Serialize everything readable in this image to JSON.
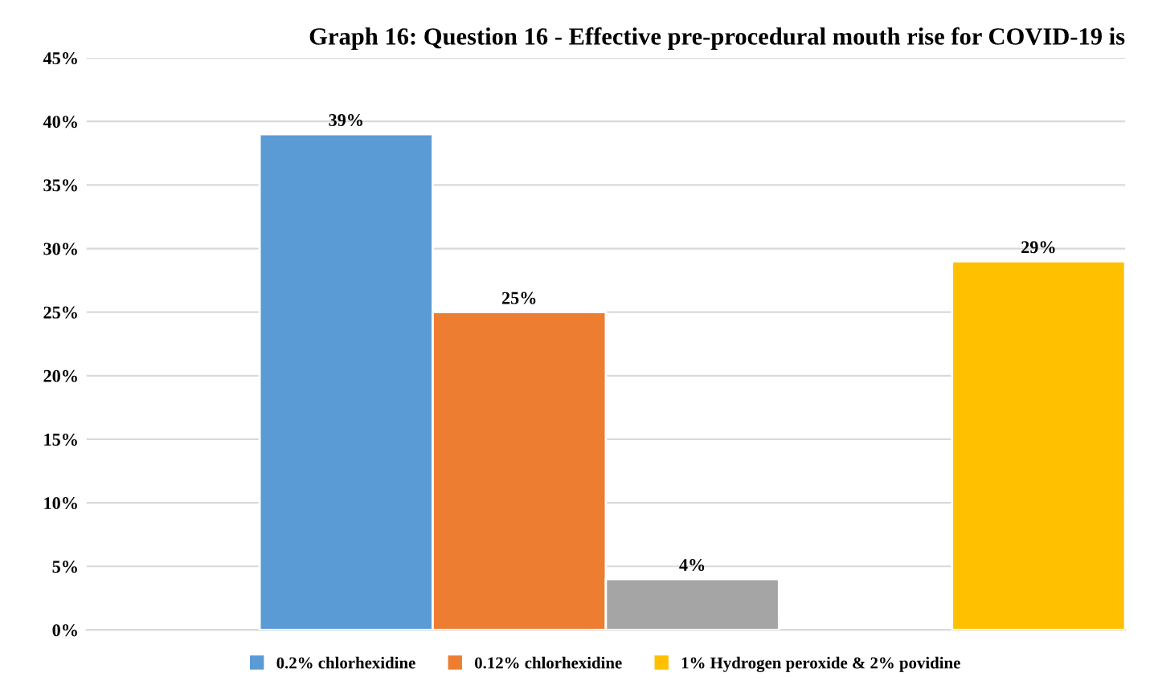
{
  "chart_data": {
    "type": "bar",
    "title": "Graph 16: Question 16 - Effective pre-procedural mouth rise for COVID-19 is",
    "categories": [
      null,
      null,
      null,
      null,
      null,
      null
    ],
    "series": [
      {
        "name": "0.2% chlorhexidine",
        "color": "#5b9bd5",
        "values": [
          null,
          39,
          null,
          null,
          null,
          null
        ],
        "value_labels": [
          null,
          "39%",
          null,
          null,
          null,
          null
        ]
      },
      {
        "name": "0.12% chlorhexidine",
        "color": "#ed7d31",
        "values": [
          null,
          null,
          25,
          null,
          null,
          null
        ],
        "value_labels": [
          null,
          null,
          "25%",
          null,
          null,
          null
        ]
      },
      {
        "color": "#a5a5a5",
        "values": [
          null,
          null,
          null,
          4,
          null,
          null
        ],
        "value_labels": [
          null,
          null,
          null,
          "4%",
          null,
          null
        ]
      },
      {
        "name": "1% Hydrogen peroxide & 2% povidine",
        "color": "#ffc000",
        "values": [
          null,
          null,
          null,
          null,
          null,
          29
        ],
        "value_labels": [
          null,
          null,
          null,
          null,
          null,
          "29%"
        ]
      }
    ],
    "ylim": [
      0,
      45
    ],
    "yticks": [
      {
        "value": 0,
        "label": "0%"
      },
      {
        "value": 5,
        "label": "5%"
      },
      {
        "value": 10,
        "label": "10%"
      },
      {
        "value": 15,
        "label": "15%"
      },
      {
        "value": 20,
        "label": "20%"
      },
      {
        "value": 25,
        "label": "25%"
      },
      {
        "value": 30,
        "label": "30%"
      },
      {
        "value": 35,
        "label": "35%"
      },
      {
        "value": 40,
        "label": "40%"
      },
      {
        "value": 45,
        "label": "45%"
      }
    ],
    "grid": "y",
    "legend": "bottom"
  }
}
